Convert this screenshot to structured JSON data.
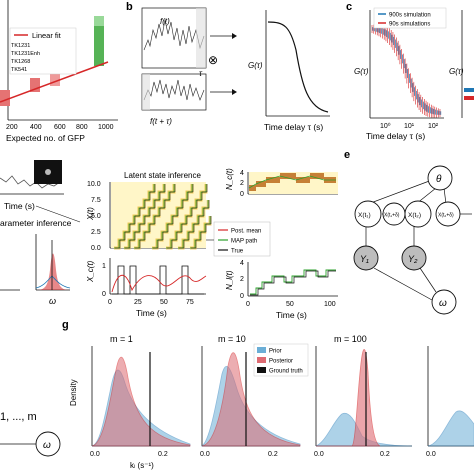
{
  "panel_letters": {
    "b": "b",
    "c": "c",
    "e": "e",
    "g": "g"
  },
  "panel_a": {
    "legend_label": "Linear fit",
    "strain_labels": [
      "TK1231",
      "TK1231Enh",
      "TK1268",
      "TK541"
    ],
    "xlabel": "Expected no. of GFP",
    "xticks": [
      "200",
      "400",
      "600",
      "800",
      "1000"
    ],
    "colors": {
      "fit": "#d62728",
      "high": "#2ca02c",
      "low": "#d62728"
    }
  },
  "panel_b": {
    "top_trace_label": "f(t)",
    "bottom_trace_label": "f(t + τ)",
    "tau_label": "τ",
    "operator": "⊗",
    "ylabel": "G(τ)",
    "xlabel": "Time delay τ (s)"
  },
  "panel_c": {
    "legend": [
      "900s simulation",
      "90s simulations"
    ],
    "ylabel": "G(τ)",
    "ylabel_right": "G(τ)",
    "xlabel": "Time delay τ (s)",
    "xticks": [
      "10⁰",
      "10¹",
      "10²"
    ],
    "colors": {
      "s900": "#1f77b4",
      "s90": "#d62728"
    }
  },
  "panel_d": {
    "time_label": "Time (s)",
    "param_title": "arameter inference",
    "omega_label": "ω",
    "latent_title": "Latent state inference",
    "x_ylabel": "X(t)",
    "x_yticks": [
      "0.0",
      "2.5",
      "5.0",
      "7.5",
      "10.0"
    ],
    "xc_ylabel": "X_c(t)",
    "xc_yticks": [
      "0",
      "1"
    ],
    "x_xticks": [
      "0",
      "25",
      "50",
      "75"
    ],
    "x_xlabel": "Time (s)",
    "legend": [
      "Post. mean",
      "MAP path",
      "True"
    ],
    "nc_ylabel": "N_c(t)",
    "nc_yticks": [
      "0",
      "2",
      "4"
    ],
    "nl_ylabel": "N_l(t)",
    "nl_yticks": [
      "0",
      "2",
      "4"
    ],
    "nl_xticks": [
      "0",
      "50",
      "100"
    ],
    "nl_xlabel": "Time (s)",
    "index_label": "1, ..., m"
  },
  "panel_e": {
    "theta": "θ",
    "x1": "X(t₁)",
    "x1b": "X(t₁+δ)",
    "x2": "X(t₂)",
    "x2b": "X(t₂+δ)",
    "y1": "Y₁",
    "y2": "Y₂",
    "omega": "ω",
    "ellipsis": "..."
  },
  "panel_g": {
    "titles": [
      "m = 1",
      "m = 10",
      "m = 100"
    ],
    "ylabel": "Density",
    "xlabel": "kₗ (s⁻¹)",
    "xticks": [
      "0.0",
      "0.2"
    ],
    "legend": [
      "Prior",
      "Posterior",
      "Ground truth"
    ],
    "colors": {
      "prior": "#6baed6",
      "posterior": "#de6b73"
    }
  }
}
